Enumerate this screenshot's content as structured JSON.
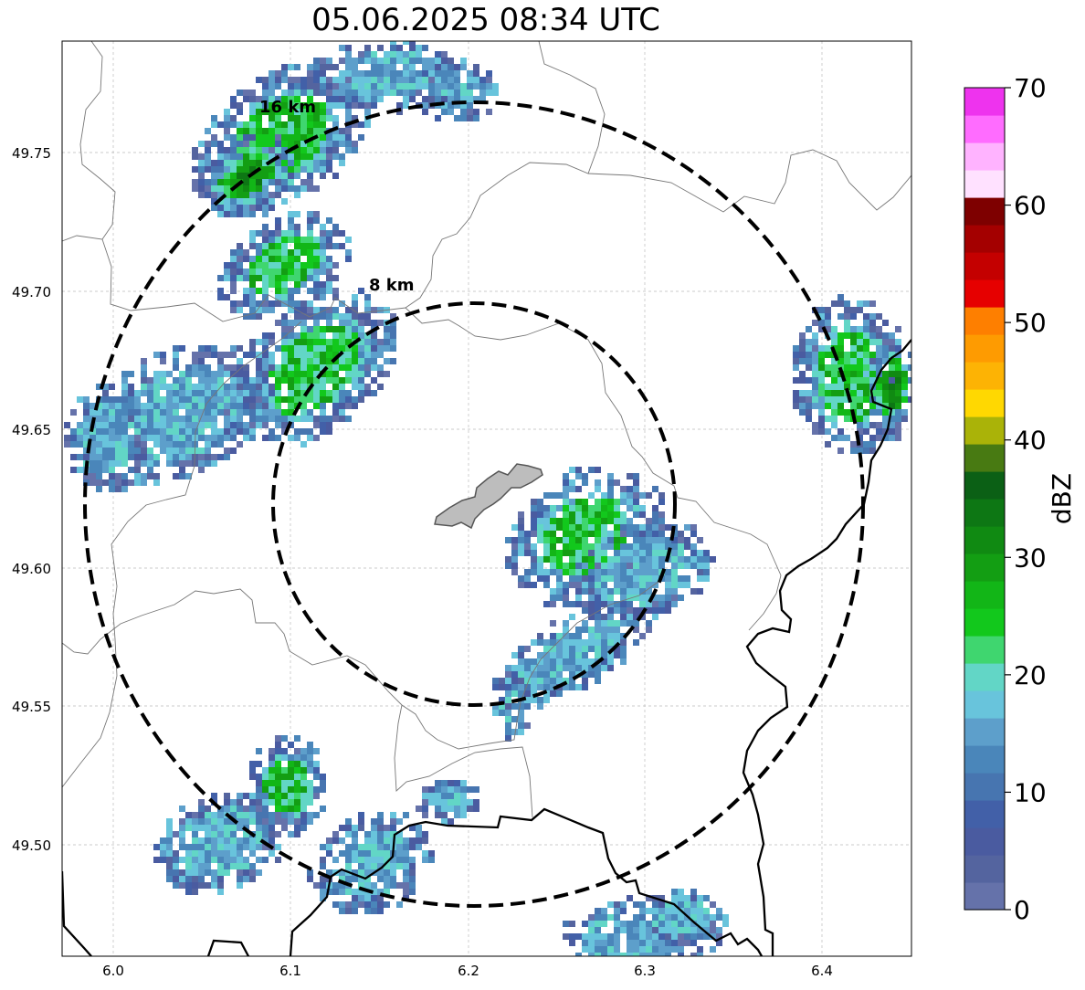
{
  "title": "05.06.2025 08:34 UTC",
  "map": {
    "x_ticks": [
      "6.0",
      "6.1",
      "6.2",
      "6.3",
      "6.4"
    ],
    "y_ticks": [
      "49.50",
      "49.55",
      "49.60",
      "49.65",
      "49.70",
      "49.75"
    ],
    "lon_range": [
      5.97,
      6.45
    ],
    "lat_range": [
      49.46,
      49.79
    ],
    "grid": true,
    "radar_center": {
      "lon": 6.203,
      "lat": 49.623
    },
    "rings": [
      {
        "label": "8 km",
        "radius_km": 8
      },
      {
        "label": "16 km",
        "radius_km": 16
      }
    ],
    "city_outline": "Luxembourg City",
    "precip_color_hint": "dBZ shaded pixels"
  },
  "colorbar": {
    "label": "dBZ",
    "ticks": [
      "0",
      "10",
      "20",
      "30",
      "40",
      "50",
      "60",
      "70"
    ],
    "range": [
      0,
      70
    ],
    "step": 2.5,
    "colors": [
      "#6572aa",
      "#54649f",
      "#4a5ba0",
      "#4260a8",
      "#4775b0",
      "#4a86ba",
      "#5d9fcb",
      "#68c4dc",
      "#62d6c6",
      "#3fd66f",
      "#12c81c",
      "#12b617",
      "#139e13",
      "#108a12",
      "#0d7714",
      "#0b6015",
      "#487a12",
      "#aab308",
      "#ffd801",
      "#fdb304",
      "#fe9b01",
      "#fe7f00",
      "#e60000",
      "#c40000",
      "#a40000",
      "#7e0000",
      "#ffe1ff",
      "#ffb3ff",
      "#ff6cff",
      "#ee33ee"
    ]
  }
}
